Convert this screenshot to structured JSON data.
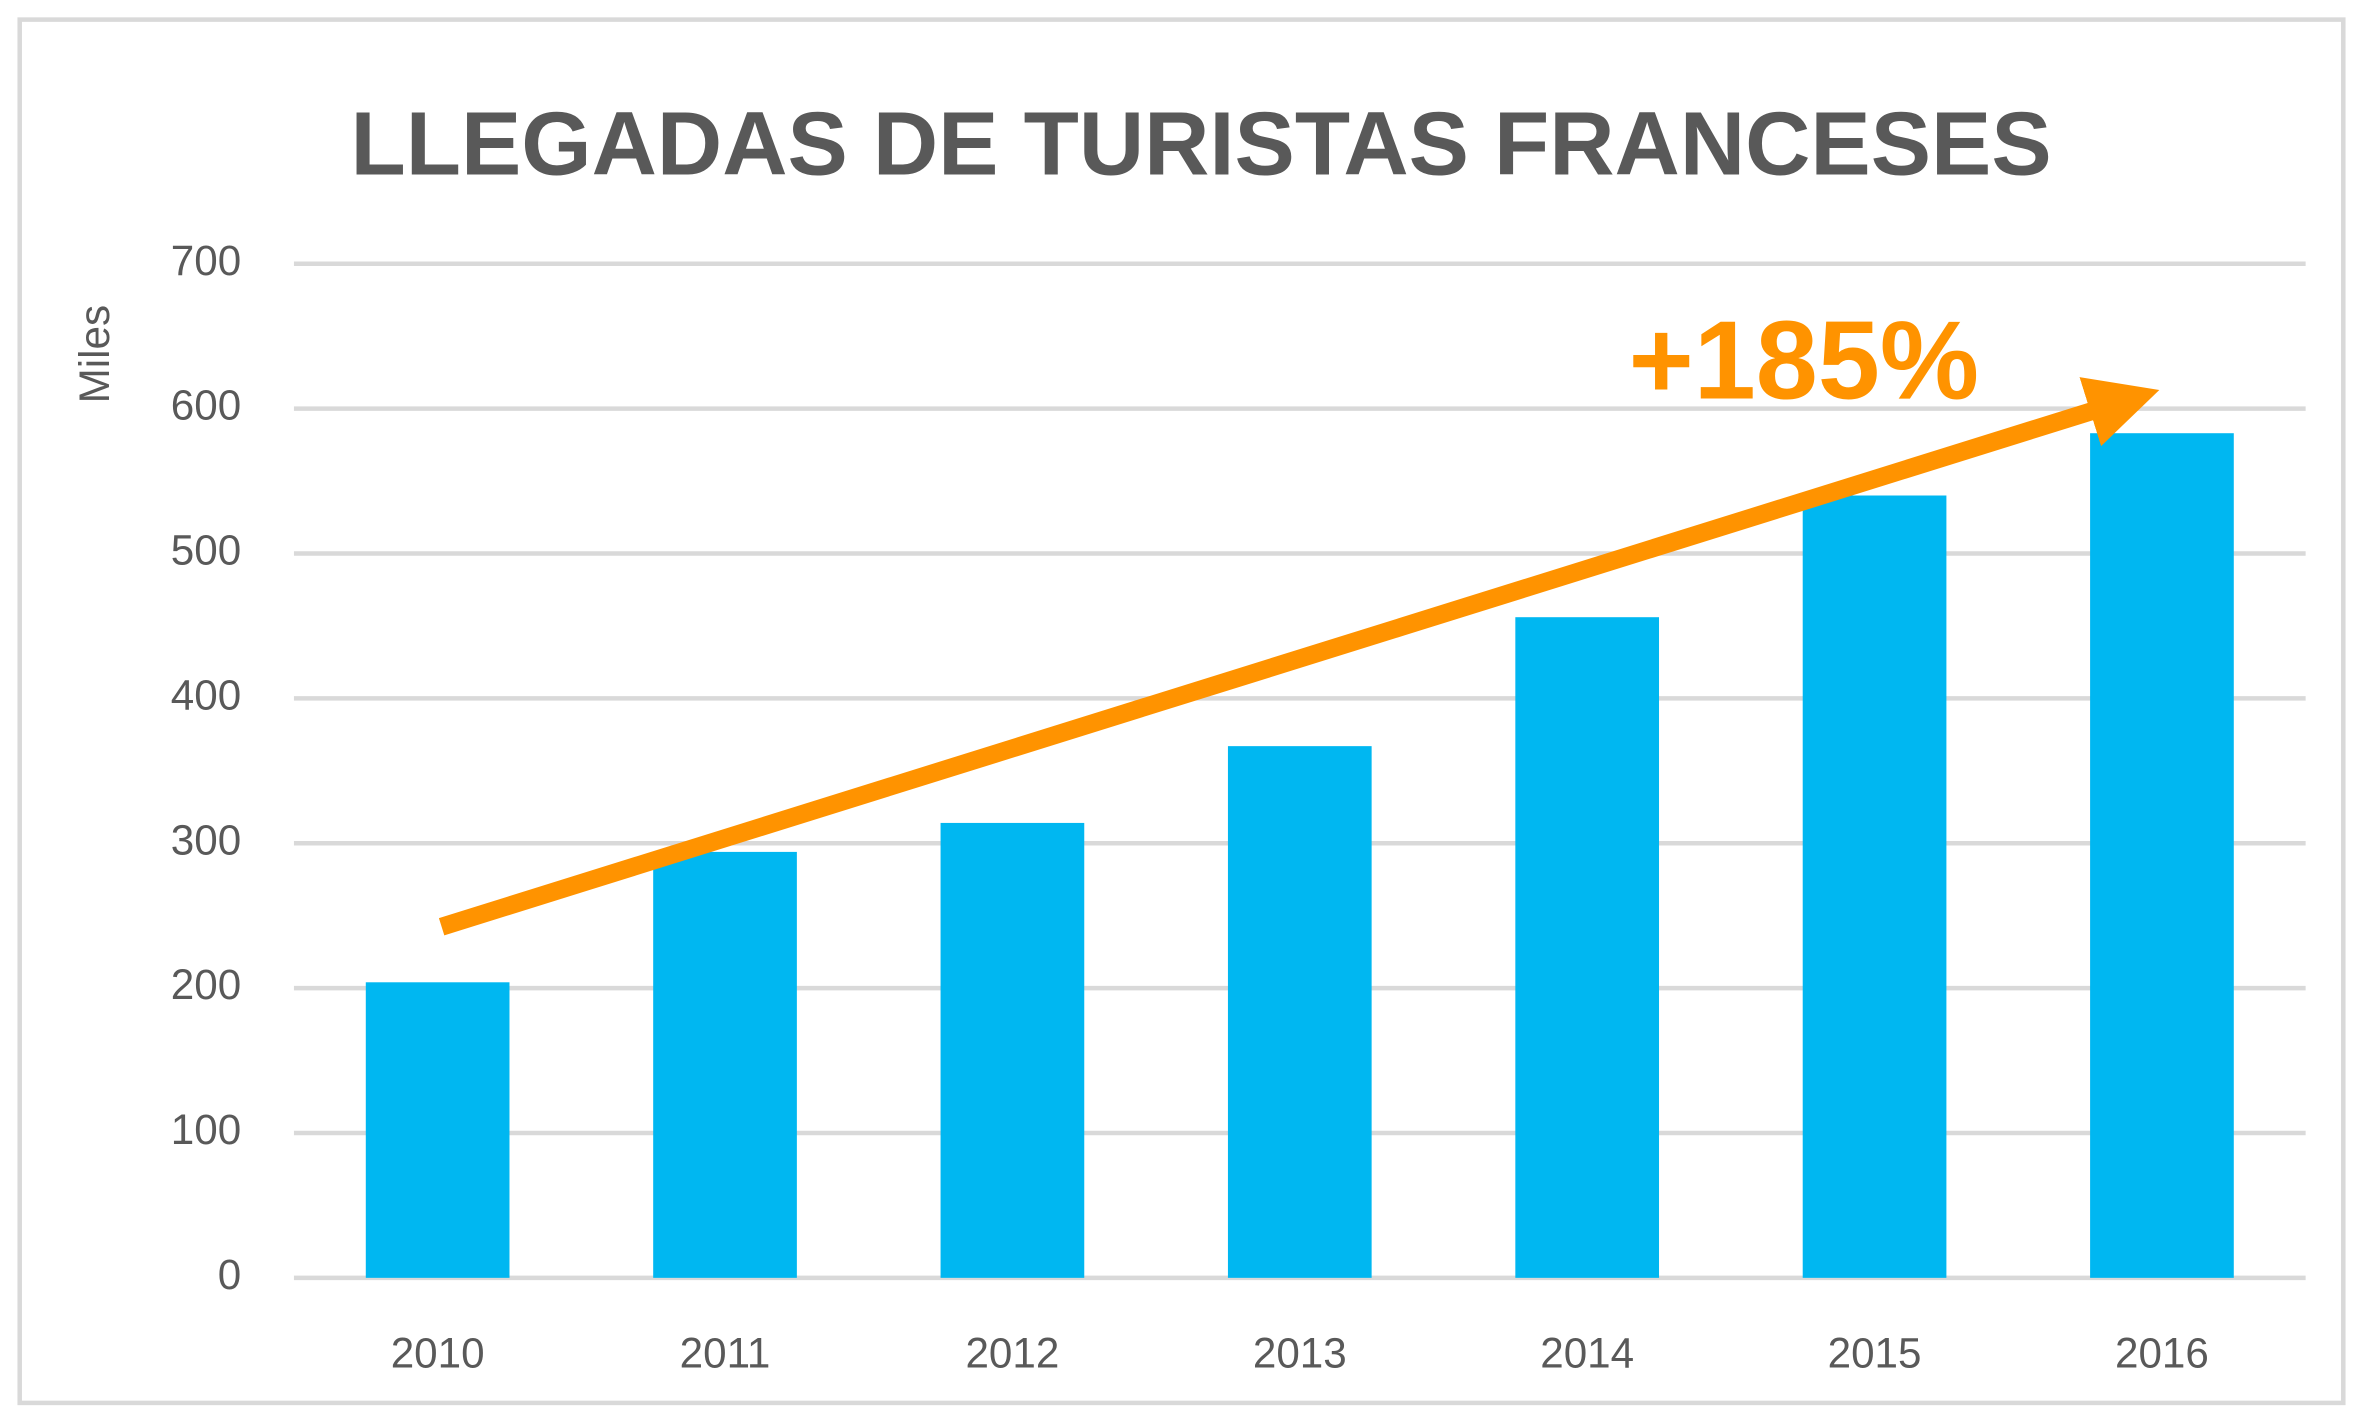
{
  "chart_data": {
    "type": "bar",
    "title": "LLEGADAS DE TURISTAS FRANCESES",
    "y_label": "Miles",
    "annotation": "+185%",
    "categories": [
      "2010",
      "2011",
      "2012",
      "2013",
      "2014",
      "2015",
      "2016"
    ],
    "values": [
      204,
      294,
      314,
      367,
      456,
      540,
      583
    ],
    "color": "#00b7f1",
    "ylim": [
      0,
      700
    ],
    "yticks": [
      0,
      100,
      200,
      300,
      400,
      500,
      600,
      700
    ],
    "grid": true
  }
}
